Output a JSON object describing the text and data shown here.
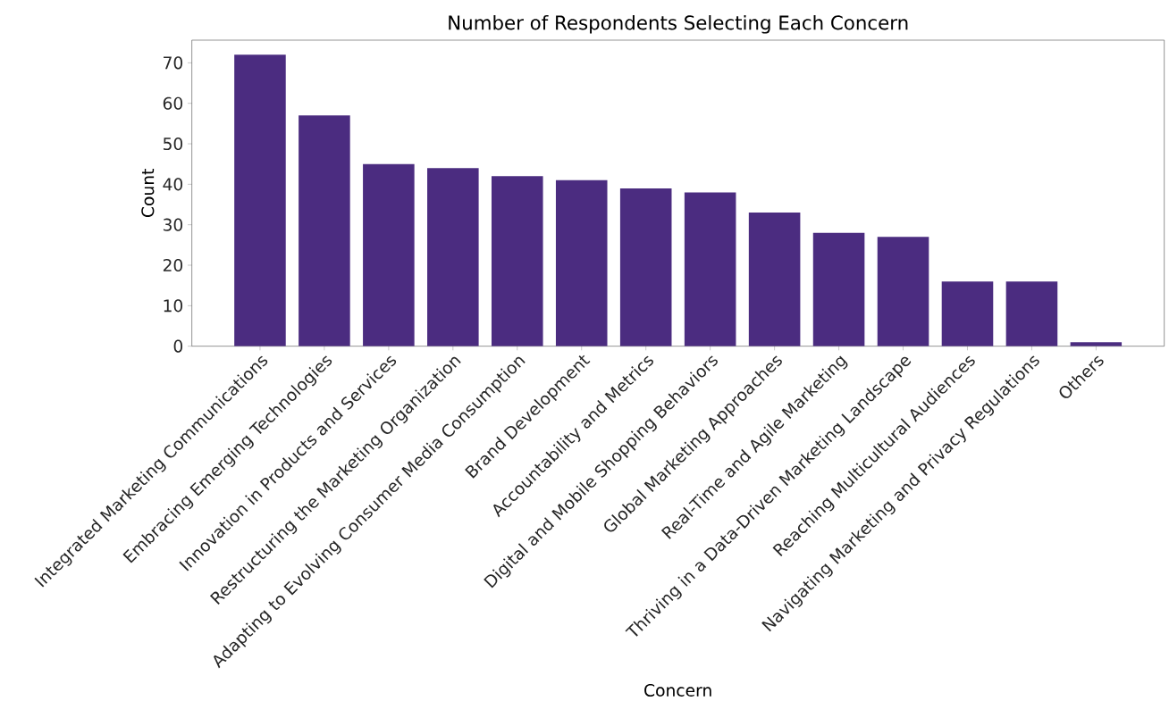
{
  "chart_data": {
    "type": "bar",
    "title": "Number of Respondents Selecting Each Concern",
    "xlabel": "Concern",
    "ylabel": "Count",
    "categories": [
      "Integrated Marketing Communications",
      "Embracing Emerging Technologies",
      "Innovation in Products and Services",
      "Restructuring the Marketing Organization",
      "Adapting to Evolving Consumer Media Consumption",
      "Brand Development",
      "Accountability and Metrics",
      "Digital and Mobile Shopping Behaviors",
      "Global Marketing Approaches",
      "Real-Time and Agile Marketing",
      "Thriving in a Data-Driven Marketing Landscape",
      "Reaching Multicultural Audiences",
      "Navigating Marketing and Privacy Regulations",
      "Others"
    ],
    "values": [
      72,
      57,
      45,
      44,
      42,
      41,
      39,
      38,
      33,
      28,
      27,
      16,
      16,
      1
    ],
    "color": "#4b2c80",
    "ylim": [
      0,
      75.6
    ],
    "yticks": [
      0,
      10,
      20,
      30,
      40,
      50,
      60,
      70
    ],
    "grid": false
  }
}
